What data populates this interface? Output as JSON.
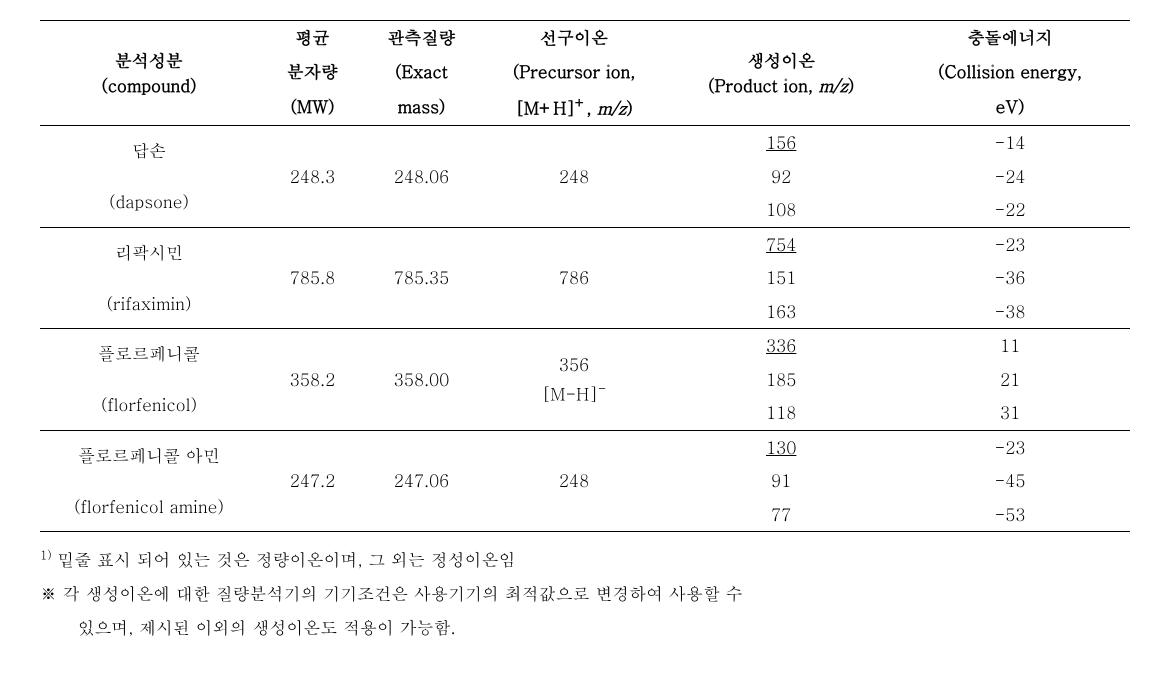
{
  "columns": {
    "c1_l1": "분석성분",
    "c1_l2": "(compound)",
    "c2_l1": "평균",
    "c2_l2": "분자량",
    "c2_l3": "(MW)",
    "c3_l1": "관측질량",
    "c3_l2": "(Exact",
    "c3_l3": "mass)",
    "c4_l1": "선구이온",
    "c4_l2": "(Precursor ion,",
    "c4_l3_a": "[M+H]",
    "c4_l3_b": "+",
    "c4_l3_c": ", ",
    "c4_l3_d": "m/z",
    "c4_l3_e": ")",
    "c5_l1": "생성이온",
    "c5_l2_a": "(Product ion, ",
    "c5_l2_b": "m/z",
    "c5_l2_c": ")",
    "c6_l1": "충돌에너지",
    "c6_l2": "(Collision energy,",
    "c6_l3": "eV)"
  },
  "rows": [
    {
      "name_ko": "답손",
      "name_en": "(dapsone)",
      "mw": "248.3",
      "exact": "248.06",
      "precursor": "248",
      "precursor_sub": "",
      "ions": [
        {
          "product": "156",
          "ce": "-14",
          "u": true
        },
        {
          "product": "92",
          "ce": "-24",
          "u": false
        },
        {
          "product": "108",
          "ce": "-22",
          "u": false
        }
      ]
    },
    {
      "name_ko": "리팍시민",
      "name_en": "(rifaximin)",
      "mw": "785.8",
      "exact": "785.35",
      "precursor": "786",
      "precursor_sub": "",
      "ions": [
        {
          "product": "754",
          "ce": "-23",
          "u": true
        },
        {
          "product": "151",
          "ce": "-36",
          "u": false
        },
        {
          "product": "163",
          "ce": "-38",
          "u": false
        }
      ]
    },
    {
      "name_ko": "플로르페니콜",
      "name_en": "(florfenicol)",
      "mw": "358.2",
      "exact": "358.00",
      "precursor": "356",
      "precursor_sub": "[M-H]",
      "precursor_sup": "-",
      "ions": [
        {
          "product": "336",
          "ce": "11",
          "u": true
        },
        {
          "product": "185",
          "ce": "21",
          "u": false
        },
        {
          "product": "118",
          "ce": "31",
          "u": false
        }
      ]
    },
    {
      "name_ko": "플로르페니콜 아민",
      "name_en": "(florfenicol amine)",
      "mw": "247.2",
      "exact": "247.06",
      "precursor": "248",
      "precursor_sub": "",
      "ions": [
        {
          "product": "130",
          "ce": "-23",
          "u": true
        },
        {
          "product": "91",
          "ce": "-45",
          "u": false
        },
        {
          "product": "77",
          "ce": "-53",
          "u": false
        }
      ]
    }
  ],
  "notes": {
    "n1_sup": "1)",
    "n1": " 밑줄 표시 되어 있는 것은 정량이온이며, 그 외는 정성이온임",
    "n2a": "※ 각 생성이온에 대한 질량분석기의 기기조건은 사용기기의 최적값으로 변경하여 사용할 수",
    "n2b": "있으며, 제시된 이외의 생성이온도 적용이 가능함."
  },
  "colwidths": [
    "20%",
    "10%",
    "10%",
    "18%",
    "20%",
    "22%"
  ]
}
